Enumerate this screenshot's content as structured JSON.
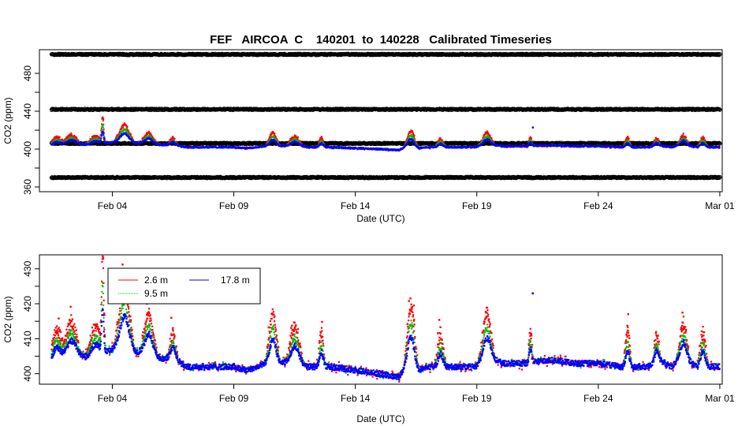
{
  "chart_data": [
    {
      "type": "scatter",
      "title": "FEF   AIRCOA  C    140201  to  140228   Calibrated Timeseries",
      "xlabel": "Date (UTC)",
      "ylabel": "CO2 (ppm)",
      "xlim": [
        1.0,
        29.1
      ],
      "ylim": [
        355,
        505
      ],
      "xticks": [
        {
          "pos": 4,
          "label": "Feb 04"
        },
        {
          "pos": 9,
          "label": "Feb 09"
        },
        {
          "pos": 14,
          "label": "Feb 14"
        },
        {
          "pos": 19,
          "label": "Feb 19"
        },
        {
          "pos": 24,
          "label": "Feb 24"
        },
        {
          "pos": 29,
          "label": "Mar 01"
        }
      ],
      "yticks": [
        360,
        400,
        440,
        480
      ],
      "calibration_levels": [
        370,
        406,
        442,
        500
      ],
      "calibration_range": [
        1.5,
        29.0
      ],
      "colors": {
        "cal": "#000000",
        "s1": "#ff0000",
        "s2": "#00bb00",
        "s3": "#0000ff"
      },
      "series": [
        {
          "values": [
            [
              1.6,
              405
            ],
            [
              2.4,
              410
            ],
            [
              3.5,
              413
            ],
            [
              4.5,
              420
            ],
            [
              5.4,
              410
            ],
            [
              10.5,
              410
            ],
            [
              11.5,
              410
            ],
            [
              16.2,
              415
            ],
            [
              19.2,
              414
            ],
            [
              21.2,
              405
            ],
            [
              26.5,
              410
            ],
            [
              27.5,
              412
            ]
          ]
        },
        {
          "values": [
            [
              1.6,
              404
            ],
            [
              2.4,
              408
            ],
            [
              3.5,
              411
            ],
            [
              4.5,
              418
            ],
            [
              5.4,
              408
            ],
            [
              10.5,
              408
            ],
            [
              11.5,
              408
            ],
            [
              16.2,
              413
            ],
            [
              19.2,
              412
            ],
            [
              21.2,
              404
            ],
            [
              26.5,
              409
            ],
            [
              27.5,
              410
            ]
          ]
        },
        {
          "values": [
            [
              1.6,
              403
            ],
            [
              2.4,
              406
            ],
            [
              3.5,
              408
            ],
            [
              4.5,
              414
            ],
            [
              5.4,
              406
            ],
            [
              10.5,
              405
            ],
            [
              11.5,
              405
            ],
            [
              16.2,
              410
            ],
            [
              19.2,
              410
            ],
            [
              21.2,
              403
            ],
            [
              26.5,
              406
            ],
            [
              27.5,
              407
            ]
          ]
        }
      ]
    },
    {
      "type": "scatter",
      "title": "",
      "xlabel": "Date (UTC)",
      "ylabel": "CO2 (ppm)",
      "xlim": [
        1.0,
        29.1
      ],
      "ylim": [
        397,
        434
      ],
      "xticks": [
        {
          "pos": 4,
          "label": "Feb 04"
        },
        {
          "pos": 9,
          "label": "Feb 09"
        },
        {
          "pos": 14,
          "label": "Feb 14"
        },
        {
          "pos": 19,
          "label": "Feb 19"
        },
        {
          "pos": 24,
          "label": "Feb 24"
        },
        {
          "pos": 29,
          "label": "Mar 01"
        }
      ],
      "yticks": [
        400,
        410,
        420,
        430
      ],
      "legend": {
        "position": "top-left",
        "entries": [
          {
            "label": "2.6 m",
            "color": "#ff0000"
          },
          {
            "label": "9.5 m",
            "color": "#00bb00"
          },
          {
            "label": "17.8 m",
            "color": "#0000ff"
          }
        ]
      },
      "baseline": [
        [
          1.5,
          403
        ],
        [
          2.0,
          405
        ],
        [
          2.5,
          406
        ],
        [
          3.0,
          404
        ],
        [
          3.5,
          405
        ],
        [
          4.0,
          407
        ],
        [
          4.5,
          409
        ],
        [
          5.0,
          406
        ],
        [
          5.5,
          407
        ],
        [
          6.0,
          404
        ],
        [
          6.5,
          405
        ],
        [
          7.0,
          402
        ],
        [
          8.0,
          402
        ],
        [
          9.0,
          402
        ],
        [
          9.5,
          401
        ],
        [
          10.0,
          402
        ],
        [
          10.6,
          404
        ],
        [
          11.0,
          403
        ],
        [
          11.6,
          404
        ],
        [
          12.0,
          402
        ],
        [
          13.0,
          402
        ],
        [
          14.0,
          401
        ],
        [
          15.0,
          400
        ],
        [
          15.8,
          399
        ],
        [
          16.2,
          404
        ],
        [
          16.6,
          401
        ],
        [
          17.0,
          402
        ],
        [
          18.0,
          402
        ],
        [
          19.0,
          402
        ],
        [
          19.5,
          405
        ],
        [
          20.0,
          403
        ],
        [
          21.0,
          403
        ],
        [
          22.0,
          404
        ],
        [
          23.0,
          403
        ],
        [
          24.0,
          403
        ],
        [
          25.0,
          402
        ],
        [
          26.0,
          402
        ],
        [
          26.5,
          404
        ],
        [
          27.0,
          402
        ],
        [
          27.5,
          405
        ],
        [
          28.0,
          402
        ],
        [
          29.0,
          402
        ]
      ],
      "events": [
        {
          "x": 1.7,
          "peak": 412,
          "w": 0.3
        },
        {
          "x": 2.3,
          "peak": 414,
          "w": 0.35
        },
        {
          "x": 3.3,
          "peak": 413,
          "w": 0.4
        },
        {
          "x": 3.6,
          "peak": 433,
          "w": 0.08
        },
        {
          "x": 4.5,
          "peak": 426,
          "w": 0.35
        },
        {
          "x": 5.5,
          "peak": 417,
          "w": 0.3
        },
        {
          "x": 6.5,
          "peak": 411,
          "w": 0.2
        },
        {
          "x": 10.6,
          "peak": 417,
          "w": 0.25
        },
        {
          "x": 11.5,
          "peak": 413,
          "w": 0.3
        },
        {
          "x": 12.6,
          "peak": 411,
          "w": 0.15
        },
        {
          "x": 16.3,
          "peak": 419,
          "w": 0.25
        },
        {
          "x": 17.5,
          "peak": 410,
          "w": 0.2
        },
        {
          "x": 19.4,
          "peak": 417,
          "w": 0.3
        },
        {
          "x": 21.2,
          "peak": 412,
          "w": 0.1
        },
        {
          "x": 25.2,
          "peak": 412,
          "w": 0.15
        },
        {
          "x": 26.4,
          "peak": 410,
          "w": 0.15
        },
        {
          "x": 27.5,
          "peak": 414,
          "w": 0.25
        },
        {
          "x": 28.3,
          "peak": 411,
          "w": 0.2
        }
      ],
      "outliers": [
        {
          "x": 3.62,
          "y": 433,
          "color": "#ff0000"
        },
        {
          "x": 21.3,
          "y": 423,
          "color": "#0000ff"
        },
        {
          "x": 5.5,
          "y": 428,
          "color": "#ff0000"
        }
      ]
    }
  ]
}
